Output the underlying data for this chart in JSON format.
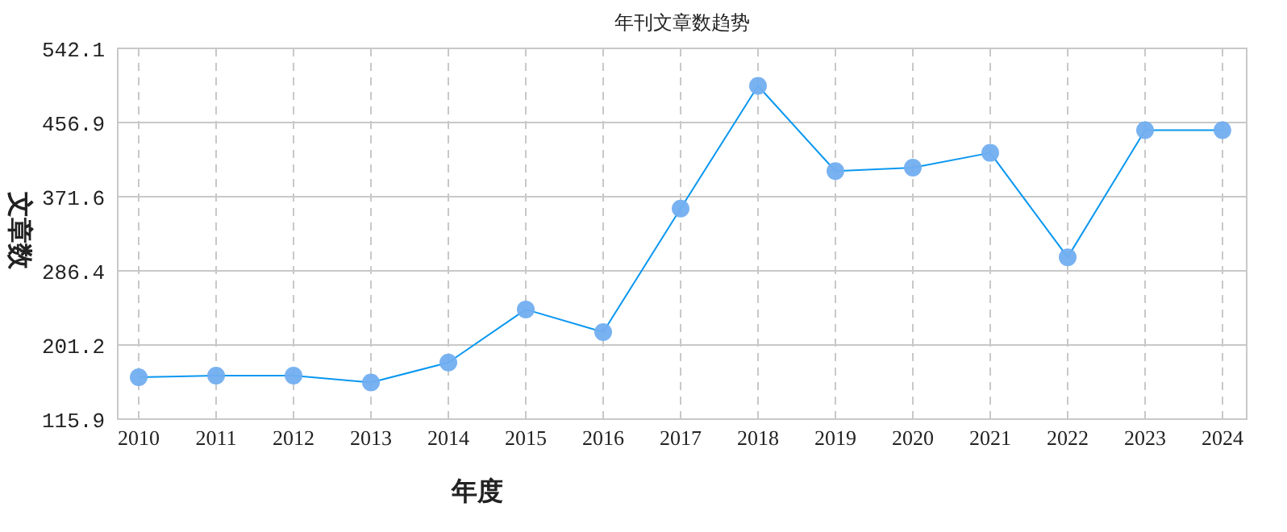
{
  "chart_data": {
    "type": "line",
    "title": "年刊文章数趋势",
    "xlabel": "年度",
    "ylabel": "文章数",
    "categories": [
      "2010",
      "2011",
      "2012",
      "2013",
      "2014",
      "2015",
      "2016",
      "2017",
      "2018",
      "2019",
      "2020",
      "2021",
      "2022",
      "2023",
      "2024"
    ],
    "series": [
      {
        "color": "#0a97f0",
        "values": [
          164,
          166,
          166,
          158,
          181,
          242,
          216,
          358,
          499,
          401,
          405,
          422,
          302,
          448,
          448
        ]
      }
    ],
    "ylim": [
      115.9,
      542.1
    ],
    "yticks": [
      115.9,
      201.2,
      286.4,
      371.6,
      456.9,
      542.1
    ],
    "grid": true,
    "marker": "circle",
    "line_style": "solid"
  }
}
